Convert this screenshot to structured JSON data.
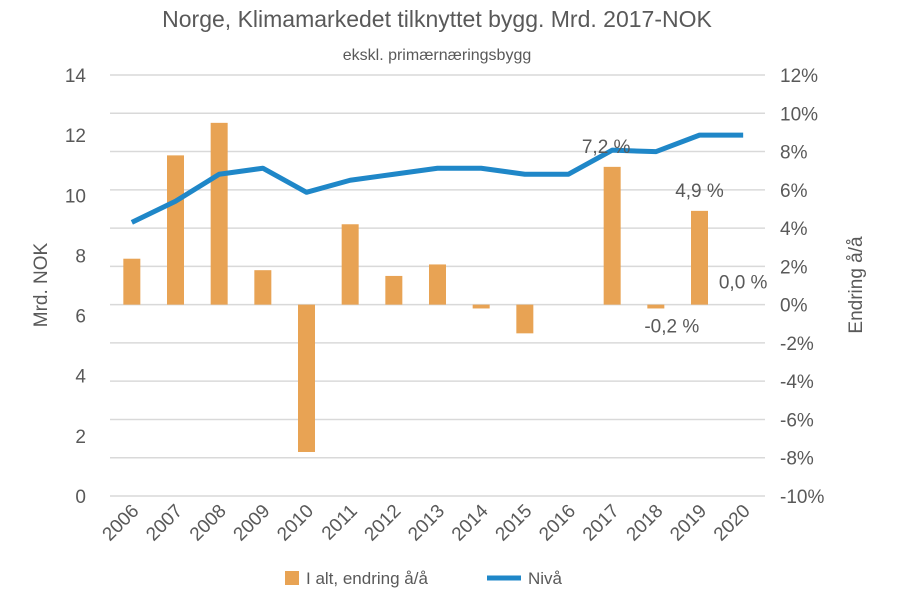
{
  "chart_data": {
    "type": "bar+line",
    "title": "Norge, Klimamarkedet tilknyttet bygg. Mrd. 2017-NOK",
    "subtitle": "ekskl. primærnæringsbygg",
    "categories": [
      "2006",
      "2007",
      "2008",
      "2009",
      "2010",
      "2011",
      "2012",
      "2013",
      "2014",
      "2015",
      "2016",
      "2017",
      "2018",
      "2019",
      "2020"
    ],
    "series": [
      {
        "name": "I alt, endring å/å",
        "type": "bar",
        "axis": "right",
        "color": "#E8A354",
        "values": [
          2.4,
          7.8,
          9.5,
          1.8,
          -7.7,
          4.2,
          1.5,
          2.1,
          -0.2,
          -1.5,
          0.0,
          7.2,
          -0.2,
          4.9,
          0.0
        ]
      },
      {
        "name": "Nivå",
        "type": "line",
        "axis": "left",
        "color": "#1F87C8",
        "values": [
          9.1,
          9.8,
          10.7,
          10.9,
          10.1,
          10.5,
          10.7,
          10.9,
          10.9,
          10.7,
          10.7,
          11.5,
          11.45,
          12.0,
          12.0
        ]
      }
    ],
    "data_labels": [
      {
        "category": "2017",
        "text": "7,2 %"
      },
      {
        "category": "2018",
        "text": "-0,2 %"
      },
      {
        "category": "2019",
        "text": "4,9 %"
      },
      {
        "category": "2020",
        "text": "0,0 %"
      }
    ],
    "left_axis": {
      "label": "Mrd. NOK",
      "ylim": [
        0,
        14
      ],
      "ticks": [
        "0",
        "2",
        "4",
        "6",
        "8",
        "10",
        "12",
        "14"
      ]
    },
    "right_axis": {
      "label": "Endring å/å",
      "ylim": [
        -10,
        12
      ],
      "ticks": [
        "12%",
        "10%",
        "8%",
        "6%",
        "4%",
        "2%",
        "0%",
        "-2%",
        "-4%",
        "-6%",
        "-8%",
        "-10%"
      ]
    },
    "grid": true,
    "legend_position": "bottom",
    "colors": {
      "grid": "#D9D9D9",
      "text": "#595959"
    }
  }
}
